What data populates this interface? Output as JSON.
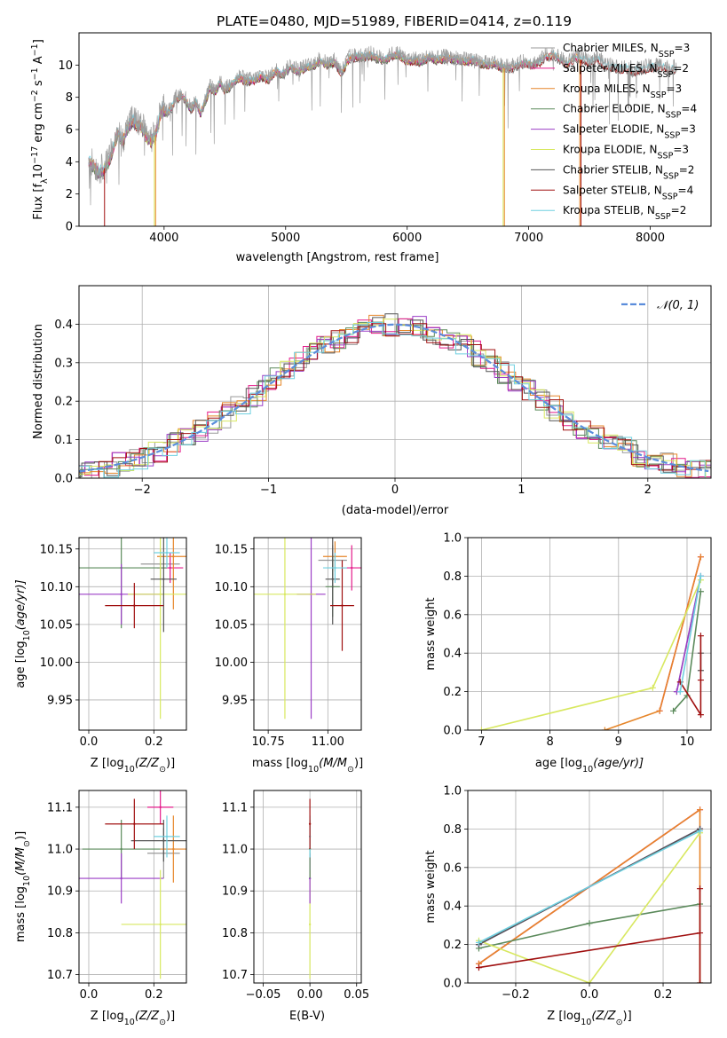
{
  "figure": {
    "title": "PLATE=0480, MJD=51989, FIBERID=0414, z=0.119"
  },
  "colors": {
    "Chabrier MILES": "#999999",
    "Salpeter MILES": "#e41a8a",
    "Kroupa MILES": "#e6862a",
    "Chabrier ELODIE": "#5b8a5b",
    "Salpeter ELODIE": "#9b3fc6",
    "Kroupa ELODIE": "#d8e860",
    "Chabrier STELIB": "#555555",
    "Salpeter STELIB": "#a01010",
    "Kroupa STELIB": "#6fd0e0",
    "normal": "#5b8ddb"
  },
  "chart_data": [
    {
      "type": "line",
      "id": "spectrum",
      "xlabel": "wavelength [Angstrom, rest frame]",
      "ylabel_prefix": "Flux [f",
      "ylabel_sub": "λ",
      "ylabel_mid": "10",
      "ylabel_sup1": "−17",
      "ylabel_mid2": " erg cm",
      "ylabel_sup2": "−2",
      "ylabel_mid3": " s",
      "ylabel_sup3": "−1",
      "ylabel_mid4": " A",
      "ylabel_sup4": "−1",
      "ylabel_end": "]",
      "xlim": [
        3300,
        8500
      ],
      "ylim": [
        0,
        12
      ],
      "xticks": [
        4000,
        5000,
        6000,
        7000,
        8000
      ],
      "yticks": [
        0,
        2,
        4,
        6,
        8,
        10
      ],
      "legend_position": "right",
      "legend": [
        {
          "label": "Chabrier MILES, N",
          "sub": "SSP",
          "tail": "=3"
        },
        {
          "label": "Salpeter MILES, N",
          "sub": "SSP",
          "tail": "=2"
        },
        {
          "label": "Kroupa MILES, N",
          "sub": "SSP",
          "tail": "=3"
        },
        {
          "label": "Chabrier ELODIE, N",
          "sub": "SSP",
          "tail": "=4"
        },
        {
          "label": "Salpeter ELODIE, N",
          "sub": "SSP",
          "tail": "=3"
        },
        {
          "label": "Kroupa ELODIE, N",
          "sub": "SSP",
          "tail": "=3"
        },
        {
          "label": "Chabrier STELIB, N",
          "sub": "SSP",
          "tail": "=2"
        },
        {
          "label": "Salpeter STELIB, N",
          "sub": "SSP",
          "tail": "=4"
        },
        {
          "label": "Kroupa STELIB, N",
          "sub": "SSP",
          "tail": "=2"
        }
      ],
      "series_data": {
        "name": "Chabrier MILES",
        "x": [
          3380,
          3420,
          3460,
          3500,
          3540,
          3580,
          3620,
          3660,
          3700,
          3740,
          3780,
          3820,
          3860,
          3900,
          3940,
          3980,
          4020,
          4060,
          4100,
          4140,
          4180,
          4220,
          4260,
          4300,
          4340,
          4380,
          4420,
          4460,
          4500,
          4560,
          4620,
          4680,
          4740,
          4800,
          4860,
          4920,
          4980,
          5040,
          5100,
          5160,
          5220,
          5280,
          5340,
          5400,
          5460,
          5520,
          5580,
          5640,
          5700,
          5760,
          5820,
          5880,
          5940,
          6000,
          6060,
          6120,
          6180,
          6240,
          6300,
          6360,
          6420,
          6480,
          6540,
          6600,
          6660,
          6720,
          6780,
          6840,
          6900,
          6960,
          7020,
          7080,
          7140,
          7200,
          7260,
          7320,
          7380,
          7440,
          7500,
          7560,
          7620,
          7680,
          7740,
          7800,
          7860,
          7920,
          7980,
          8040,
          8100,
          8160,
          8220
        ],
        "y": [
          4.0,
          3.7,
          3.3,
          3.5,
          3.9,
          4.8,
          5.8,
          5.2,
          6.1,
          6.6,
          6.3,
          6.1,
          5.5,
          5.3,
          5.8,
          7.3,
          7.0,
          7.3,
          7.9,
          8.1,
          7.8,
          7.2,
          7.7,
          7.0,
          7.8,
          8.6,
          8.3,
          8.9,
          8.4,
          8.8,
          9.2,
          9.0,
          9.0,
          9.3,
          9.1,
          9.6,
          9.4,
          9.9,
          9.6,
          9.8,
          9.9,
          10.3,
          10.0,
          10.2,
          9.5,
          10.4,
          10.5,
          10.5,
          10.6,
          10.4,
          10.3,
          10.6,
          10.6,
          10.2,
          10.3,
          10.2,
          10.5,
          10.3,
          10.4,
          10.4,
          10.3,
          10.2,
          10.3,
          10.1,
          10.0,
          10.1,
          9.8,
          9.8,
          9.9,
          10.1,
          10.0,
          10.1,
          10.5,
          10.6,
          10.3,
          10.0,
          10.5,
          10.3,
          10.1,
          10.4,
          10.0,
          9.9,
          9.7,
          9.8,
          9.6,
          9.7,
          9.8,
          9.9,
          9.9,
          9.7,
          9.8
        ]
      }
    },
    {
      "type": "line",
      "id": "residual_hist",
      "xlabel": "(data-model)/error",
      "ylabel": "Normed distribution",
      "xlim": [
        -2.5,
        2.5
      ],
      "ylim": [
        0,
        0.5
      ],
      "xticks": [
        -2,
        -1,
        0,
        1,
        2
      ],
      "yticks": [
        0.0,
        0.1,
        0.2,
        0.3,
        0.4
      ],
      "legend_position": "top-right",
      "legend": [
        {
          "label": "𝒩(0, 1)"
        }
      ]
    },
    {
      "type": "scatter",
      "id": "age_vs_Z",
      "xlabel": "Z [log",
      "xlabel_sub": "10",
      "xlabel_tail": "(Z/Z",
      "xlabel_sub2": "⊙",
      "xlabel_end": ")]",
      "ylabel": "age  [log",
      "ylabel_sub": "10",
      "ylabel_tail": "(age/yr)]",
      "xlim": [
        -0.03,
        0.3
      ],
      "ylim": [
        9.91,
        10.165
      ],
      "xticks": [
        0.0,
        0.2
      ],
      "yticks": [
        9.95,
        10.0,
        10.05,
        10.1,
        10.15
      ],
      "points": [
        {
          "model": "Chabrier MILES",
          "x": 0.22,
          "y": 10.13,
          "xerr": 0.06,
          "yerr": 0.02
        },
        {
          "model": "Salpeter MILES",
          "x": 0.25,
          "y": 10.125,
          "xerr": 0.04,
          "yerr": 0.02
        },
        {
          "model": "Kroupa MILES",
          "x": 0.26,
          "y": 10.14,
          "xerr": 0.05,
          "yerr": 0.07
        },
        {
          "model": "Chabrier ELODIE",
          "x": 0.1,
          "y": 10.125,
          "xerr": 0.14,
          "yerr": 0.08
        },
        {
          "model": "Salpeter ELODIE",
          "x": 0.1,
          "y": 10.09,
          "xerr": 0.13,
          "yerr": 0.04
        },
        {
          "model": "Kroupa ELODIE",
          "x": 0.22,
          "y": 10.09,
          "xerr": 0.1,
          "yerr": 0.165
        },
        {
          "model": "Chabrier STELIB",
          "x": 0.23,
          "y": 10.11,
          "xerr": 0.04,
          "yerr": 0.07
        },
        {
          "model": "Salpeter STELIB",
          "x": 0.14,
          "y": 10.075,
          "xerr": 0.09,
          "yerr": 0.03
        },
        {
          "model": "Kroupa STELIB",
          "x": 0.24,
          "y": 10.145,
          "xerr": 0.04,
          "yerr": 0.02
        }
      ]
    },
    {
      "type": "scatter",
      "id": "age_vs_mass",
      "xlabel": "mass [log",
      "xlabel_sub": "10",
      "xlabel_tail": "(M/M",
      "xlabel_sub2": "⊙",
      "xlabel_end": ")]",
      "xlim": [
        10.69,
        11.14
      ],
      "ylim": [
        9.91,
        10.165
      ],
      "xticks": [
        10.75,
        11.0
      ],
      "yticks": [
        9.95,
        10.0,
        10.05,
        10.1,
        10.15
      ],
      "points": [
        {
          "model": "Chabrier MILES",
          "x": 11.02,
          "y": 10.135,
          "xerr": 0.06,
          "yerr": 0.02
        },
        {
          "model": "Salpeter MILES",
          "x": 11.1,
          "y": 10.125,
          "xerr": 0.04,
          "yerr": 0.03
        },
        {
          "model": "Kroupa MILES",
          "x": 11.03,
          "y": 10.14,
          "xerr": 0.05,
          "yerr": 0.02
        },
        {
          "model": "Chabrier ELODIE",
          "x": 11.02,
          "y": 10.1,
          "xerr": 0.03,
          "yerr": 0.04
        },
        {
          "model": "Salpeter ELODIE",
          "x": 10.93,
          "y": 10.09,
          "xerr": 0.06,
          "yerr": 0.165
        },
        {
          "model": "Kroupa ELODIE",
          "x": 10.82,
          "y": 10.09,
          "xerr": 0.13,
          "yerr": 0.165
        },
        {
          "model": "Chabrier STELIB",
          "x": 11.02,
          "y": 10.11,
          "xerr": 0.03,
          "yerr": 0.06
        },
        {
          "model": "Salpeter STELIB",
          "x": 11.06,
          "y": 10.075,
          "xerr": 0.05,
          "yerr": 0.06
        },
        {
          "model": "Kroupa STELIB",
          "x": 11.03,
          "y": 10.125,
          "xerr": 0.05,
          "yerr": 0.02
        }
      ]
    },
    {
      "type": "line",
      "id": "massweight_vs_age",
      "xlabel": "age  [log",
      "xlabel_sub": "10",
      "xlabel_tail": "(age/yr)]",
      "ylabel": "mass weight",
      "xlim": [
        6.8,
        10.35
      ],
      "ylim": [
        0,
        1
      ],
      "xticks": [
        7,
        8,
        9,
        10
      ],
      "yticks": [
        0.0,
        0.2,
        0.4,
        0.6,
        0.8,
        1.0
      ],
      "series": [
        {
          "model": "Chabrier MILES",
          "x": [
            9.85,
            10.2
          ],
          "y": [
            0.2,
            0.8
          ]
        },
        {
          "model": "Salpeter MILES",
          "x": [
            9.6,
            10.2
          ],
          "y": [
            0.1,
            0.9
          ]
        },
        {
          "model": "Kroupa MILES",
          "x": [
            8.8,
            9.6,
            10.2
          ],
          "y": [
            0.0,
            0.1,
            0.9
          ]
        },
        {
          "model": "Chabrier ELODIE",
          "x": [
            9.8,
            10.0,
            10.2
          ],
          "y": [
            0.1,
            0.18,
            0.72
          ]
        },
        {
          "model": "Salpeter ELODIE",
          "x": [
            9.85,
            10.2
          ],
          "y": [
            0.2,
            0.8
          ]
        },
        {
          "model": "Kroupa ELODIE",
          "x": [
            7.0,
            9.5,
            10.2
          ],
          "y": [
            0.0,
            0.22,
            0.78
          ]
        },
        {
          "model": "Chabrier STELIB",
          "x": [
            10.2,
            10.2
          ],
          "y": [
            0.31,
            0.4
          ]
        },
        {
          "model": "Salpeter STELIB",
          "x": [
            9.9,
            10.2,
            10.2,
            10.2
          ],
          "y": [
            0.25,
            0.08,
            0.49,
            0.26
          ]
        },
        {
          "model": "Kroupa STELIB",
          "x": [
            9.9,
            10.2
          ],
          "y": [
            0.2,
            0.8
          ]
        }
      ]
    },
    {
      "type": "scatter",
      "id": "mass_vs_Z",
      "xlabel": "Z [log",
      "xlabel_sub": "10",
      "xlabel_tail": "(Z/Z",
      "xlabel_sub2": "⊙",
      "xlabel_end": ")]",
      "ylabel": "mass [log",
      "ylabel_sub": "10",
      "ylabel_tail": "(M/M",
      "ylabel_sub2": "⊙",
      "ylabel_end": ")]",
      "xlim": [
        -0.03,
        0.3
      ],
      "ylim": [
        10.68,
        11.14
      ],
      "xticks": [
        0.0,
        0.2
      ],
      "yticks": [
        10.7,
        10.8,
        10.9,
        11.0,
        11.1
      ],
      "points": [
        {
          "model": "Chabrier MILES",
          "x": 0.23,
          "y": 10.99,
          "xerr": 0.05,
          "yerr": 0.06
        },
        {
          "model": "Salpeter MILES",
          "x": 0.22,
          "y": 11.1,
          "xerr": 0.04,
          "yerr": 0.04
        },
        {
          "model": "Kroupa MILES",
          "x": 0.26,
          "y": 11.0,
          "xerr": 0.04,
          "yerr": 0.08
        },
        {
          "model": "Chabrier ELODIE",
          "x": 0.1,
          "y": 11.0,
          "xerr": 0.12,
          "yerr": 0.07
        },
        {
          "model": "Salpeter ELODIE",
          "x": 0.1,
          "y": 10.93,
          "xerr": 0.13,
          "yerr": 0.06
        },
        {
          "model": "Kroupa ELODIE",
          "x": 0.22,
          "y": 10.82,
          "xerr": 0.12,
          "yerr": 0.13
        },
        {
          "model": "Chabrier STELIB",
          "x": 0.23,
          "y": 11.02,
          "xerr": 0.1,
          "yerr": 0.05
        },
        {
          "model": "Salpeter STELIB",
          "x": 0.14,
          "y": 11.06,
          "xerr": 0.09,
          "yerr": 0.06
        },
        {
          "model": "Kroupa STELIB",
          "x": 0.24,
          "y": 11.03,
          "xerr": 0.04,
          "yerr": 0.05
        }
      ]
    },
    {
      "type": "scatter",
      "id": "mass_vs_ebv",
      "xlabel": "E(B-V)",
      "xlim": [
        -0.06,
        0.055
      ],
      "ylim": [
        10.68,
        11.14
      ],
      "xticks": [
        -0.05,
        0.0,
        0.05
      ],
      "yticks": [
        10.7,
        10.8,
        10.9,
        11.0,
        11.1
      ],
      "points": [
        {
          "model": "Kroupa ELODIE",
          "x": 0.0,
          "y": 10.82,
          "xerr": 0.0,
          "yerr": 0.13
        },
        {
          "model": "Salpeter ELODIE",
          "x": 0.0,
          "y": 10.93,
          "xerr": 0.0,
          "yerr": 0.06
        },
        {
          "model": "Chabrier ELODIE",
          "x": 0.0,
          "y": 11.0,
          "xerr": 0.0,
          "yerr": 0.07
        },
        {
          "model": "Kroupa STELIB",
          "x": 0.0,
          "y": 11.03,
          "xerr": 0.0,
          "yerr": 0.05
        },
        {
          "model": "Salpeter STELIB",
          "x": 0.0,
          "y": 11.06,
          "xerr": 0.0,
          "yerr": 0.06
        }
      ]
    },
    {
      "type": "line",
      "id": "massweight_vs_Z",
      "xlabel": "Z [log",
      "xlabel_sub": "10",
      "xlabel_tail": "(Z/Z",
      "xlabel_sub2": "⊙",
      "xlabel_end": ")]",
      "ylabel": "mass weight",
      "xlim": [
        -0.33,
        0.33
      ],
      "ylim": [
        0,
        1
      ],
      "xticks": [
        -0.2,
        0.0,
        0.2
      ],
      "yticks": [
        0.0,
        0.2,
        0.4,
        0.6,
        0.8,
        1.0
      ],
      "series": [
        {
          "model": "Chabrier MILES",
          "x": [
            -0.3,
            0.3
          ],
          "y": [
            0.2,
            0.8
          ]
        },
        {
          "model": "Salpeter MILES",
          "x": [
            -0.3,
            0.3
          ],
          "y": [
            0.1,
            0.9
          ]
        },
        {
          "model": "Kroupa MILES",
          "x": [
            -0.3,
            0.3,
            0.3
          ],
          "y": [
            0.1,
            0.9,
            0.0
          ]
        },
        {
          "model": "Chabrier ELODIE",
          "x": [
            -0.3,
            0.0,
            0.3
          ],
          "y": [
            0.18,
            0.31,
            0.41
          ]
        },
        {
          "model": "Salpeter ELODIE",
          "x": [
            -0.3,
            0.3
          ],
          "y": [
            0.2,
            0.8
          ]
        },
        {
          "model": "Kroupa ELODIE",
          "x": [
            -0.3,
            0.0,
            0.3
          ],
          "y": [
            0.22,
            0.0,
            0.78
          ]
        },
        {
          "model": "Chabrier STELIB",
          "x": [
            -0.3,
            0.3
          ],
          "y": [
            0.2,
            0.8
          ]
        },
        {
          "model": "Salpeter STELIB",
          "x": [
            -0.3,
            0.3,
            0.3,
            0.3
          ],
          "y": [
            0.08,
            0.26,
            0.49,
            0.0
          ]
        },
        {
          "model": "Kroupa STELIB",
          "x": [
            -0.3,
            0.3
          ],
          "y": [
            0.21,
            0.79
          ]
        }
      ]
    }
  ]
}
